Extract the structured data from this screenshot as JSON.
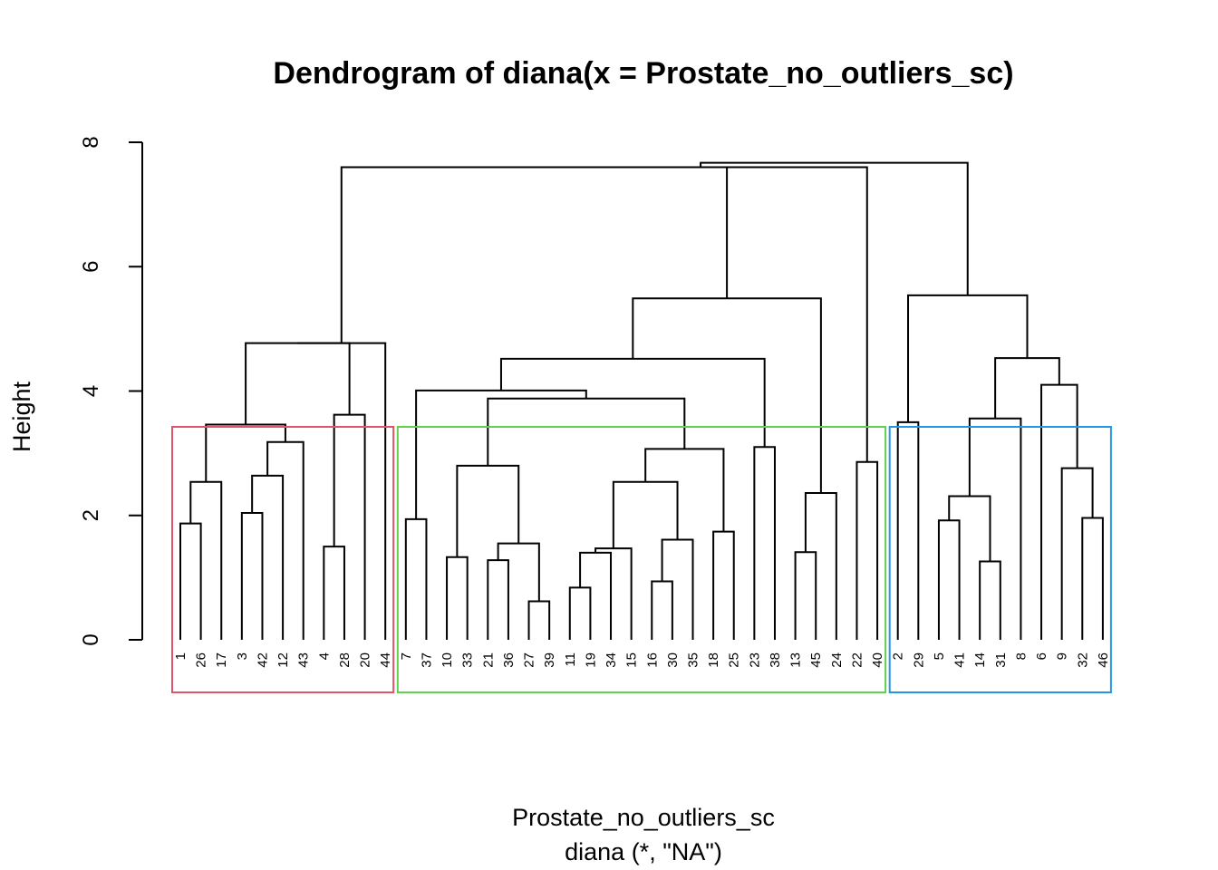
{
  "chart_data": {
    "type": "dendrogram",
    "title": "Dendrogram of  diana(x = Prostate_no_outliers_sc)",
    "xlabel": "Prostate_no_outliers_sc",
    "sub_label": "diana (*, \"NA\")",
    "ylabel": "Height",
    "ylim": [
      0,
      8
    ],
    "y_ticks": [
      "0",
      "2",
      "4",
      "6",
      "8"
    ],
    "leaves": [
      "1",
      "26",
      "17",
      "3",
      "42",
      "12",
      "43",
      "4",
      "28",
      "20",
      "44",
      "7",
      "37",
      "10",
      "33",
      "21",
      "36",
      "27",
      "39",
      "11",
      "19",
      "34",
      "15",
      "16",
      "30",
      "35",
      "18",
      "25",
      "23",
      "38",
      "13",
      "45",
      "24",
      "22",
      "40",
      "2",
      "29",
      "5",
      "41",
      "14",
      "31",
      "8",
      "6",
      "9",
      "32",
      "46"
    ],
    "merges": [
      {
        "id": "A1",
        "left": "1",
        "right": "26",
        "height": 1.87
      },
      {
        "id": "A2",
        "left": "A1",
        "right": "17",
        "height": 2.54
      },
      {
        "id": "A3",
        "left": "3",
        "right": "42",
        "height": 2.04
      },
      {
        "id": "A4",
        "left": "A3",
        "right": "12",
        "height": 2.64
      },
      {
        "id": "A5",
        "left": "A4",
        "right": "43",
        "height": 3.18
      },
      {
        "id": "A6",
        "left": "A2",
        "right": "A5",
        "height": 3.46
      },
      {
        "id": "A7",
        "left": "4",
        "right": "28",
        "height": 1.5
      },
      {
        "id": "A8",
        "left": "A7",
        "right": "20",
        "height": 3.62
      },
      {
        "id": "A9",
        "left": "A6",
        "right": "A8",
        "height": 4.77
      },
      {
        "id": "A10",
        "left": "A9",
        "right": "44",
        "height": 4.77
      },
      {
        "id": "B1",
        "left": "10",
        "right": "33",
        "height": 1.33
      },
      {
        "id": "B2",
        "left": "27",
        "right": "39",
        "height": 0.62
      },
      {
        "id": "B3",
        "left": "21",
        "right": "36",
        "height": 1.28
      },
      {
        "id": "B4",
        "left": "B3",
        "right": "B2",
        "height": 1.55
      },
      {
        "id": "B5",
        "left": "B1",
        "right": "B4",
        "height": 2.8
      },
      {
        "id": "B6",
        "left": "11",
        "right": "19",
        "height": 0.84
      },
      {
        "id": "B7",
        "left": "B6",
        "right": "34",
        "height": 1.4
      },
      {
        "id": "B8",
        "left": "B7",
        "right": "15",
        "height": 1.47
      },
      {
        "id": "B9",
        "left": "16",
        "right": "30",
        "height": 0.94
      },
      {
        "id": "B10",
        "left": "B9",
        "right": "35",
        "height": 1.61
      },
      {
        "id": "B11",
        "left": "B8",
        "right": "B10",
        "height": 2.54
      },
      {
        "id": "B12",
        "left": "18",
        "right": "25",
        "height": 1.74
      },
      {
        "id": "B13",
        "left": "B11",
        "right": "B12",
        "height": 3.07
      },
      {
        "id": "B14",
        "left": "B5",
        "right": "B13",
        "height": 3.88
      },
      {
        "id": "B15",
        "left": "7",
        "right": "37",
        "height": 1.94
      },
      {
        "id": "B16",
        "left": "B15",
        "right": "B14",
        "height": 4.01
      },
      {
        "id": "B17",
        "left": "23",
        "right": "38",
        "height": 3.1
      },
      {
        "id": "B18",
        "left": "B16",
        "right": "B17",
        "height": 4.52
      },
      {
        "id": "B19",
        "left": "13",
        "right": "45",
        "height": 1.41
      },
      {
        "id": "B20",
        "left": "B19",
        "right": "24",
        "height": 2.36
      },
      {
        "id": "B21",
        "left": "B18",
        "right": "B20",
        "height": 5.49
      },
      {
        "id": "B22",
        "left": "22",
        "right": "40",
        "height": 2.86
      },
      {
        "id": "C1",
        "left": "2",
        "right": "29",
        "height": 3.5
      },
      {
        "id": "C2",
        "left": "5",
        "right": "41",
        "height": 1.92
      },
      {
        "id": "C3",
        "left": "14",
        "right": "31",
        "height": 1.26
      },
      {
        "id": "C4",
        "left": "C2",
        "right": "C3",
        "height": 2.31
      },
      {
        "id": "C5",
        "left": "C4",
        "right": "8",
        "height": 3.56
      },
      {
        "id": "C6",
        "left": "32",
        "right": "46",
        "height": 1.96
      },
      {
        "id": "C7",
        "left": "9",
        "right": "C6",
        "height": 2.76
      },
      {
        "id": "C8",
        "left": "6",
        "right": "C7",
        "height": 4.1
      },
      {
        "id": "C9",
        "left": "C5",
        "right": "C8",
        "height": 4.53
      },
      {
        "id": "C10",
        "left": "C1",
        "right": "C9",
        "height": 5.54
      },
      {
        "id": "R1",
        "left": "A10",
        "right": "B21",
        "height": 7.6
      },
      {
        "id": "R2",
        "left": "R1",
        "right": "B22",
        "height": 7.6
      },
      {
        "id": "R3",
        "left": "R2",
        "right": "C10",
        "height": 7.67
      }
    ],
    "cluster_boxes": [
      {
        "first_leaf": "1",
        "last_leaf": "44",
        "color": "#DF536B"
      },
      {
        "first_leaf": "7",
        "last_leaf": "40",
        "color": "#61D04F"
      },
      {
        "first_leaf": "2",
        "last_leaf": "46",
        "color": "#2297E6"
      }
    ]
  }
}
